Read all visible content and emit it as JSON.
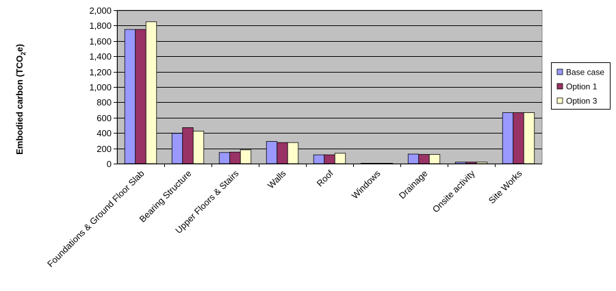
{
  "chart_data": {
    "type": "bar",
    "title": "",
    "xlabel": "",
    "ylabel": {
      "prefix": "Embodied carbon (TCO",
      "subscript": "2",
      "suffix": "e)"
    },
    "ylim": [
      0,
      2000
    ],
    "yticks": [
      0,
      200,
      400,
      600,
      800,
      1000,
      1200,
      1400,
      1600,
      1800,
      2000
    ],
    "ytick_labels": [
      "0",
      "200",
      "400",
      "600",
      "800",
      "1,000",
      "1,200",
      "1,400",
      "1,600",
      "1,800",
      "2,000"
    ],
    "grid": true,
    "legend_position": "right",
    "categories": [
      "Foundations & Ground Floor Slab",
      "Bearing Structure",
      "Upper Floors & Stairs",
      "Walls",
      "Roof",
      "Windows",
      "Drainage",
      "Onsite activity",
      "Site Works"
    ],
    "series": [
      {
        "name": "Base case",
        "color": "#9999ff",
        "values": [
          1750,
          395,
          145,
          290,
          115,
          5,
          125,
          20,
          665
        ]
      },
      {
        "name": "Option 1",
        "color": "#993366",
        "values": [
          1750,
          470,
          150,
          275,
          115,
          5,
          120,
          20,
          665
        ]
      },
      {
        "name": "Option 3",
        "color": "#ffffcc",
        "values": [
          1850,
          425,
          180,
          275,
          135,
          5,
          120,
          20,
          665
        ]
      }
    ],
    "colors": {
      "plot_background": "#c0c0c0",
      "gridline": "#000000",
      "bar_outline": "#000000",
      "legend_background": "#ffffff"
    }
  }
}
